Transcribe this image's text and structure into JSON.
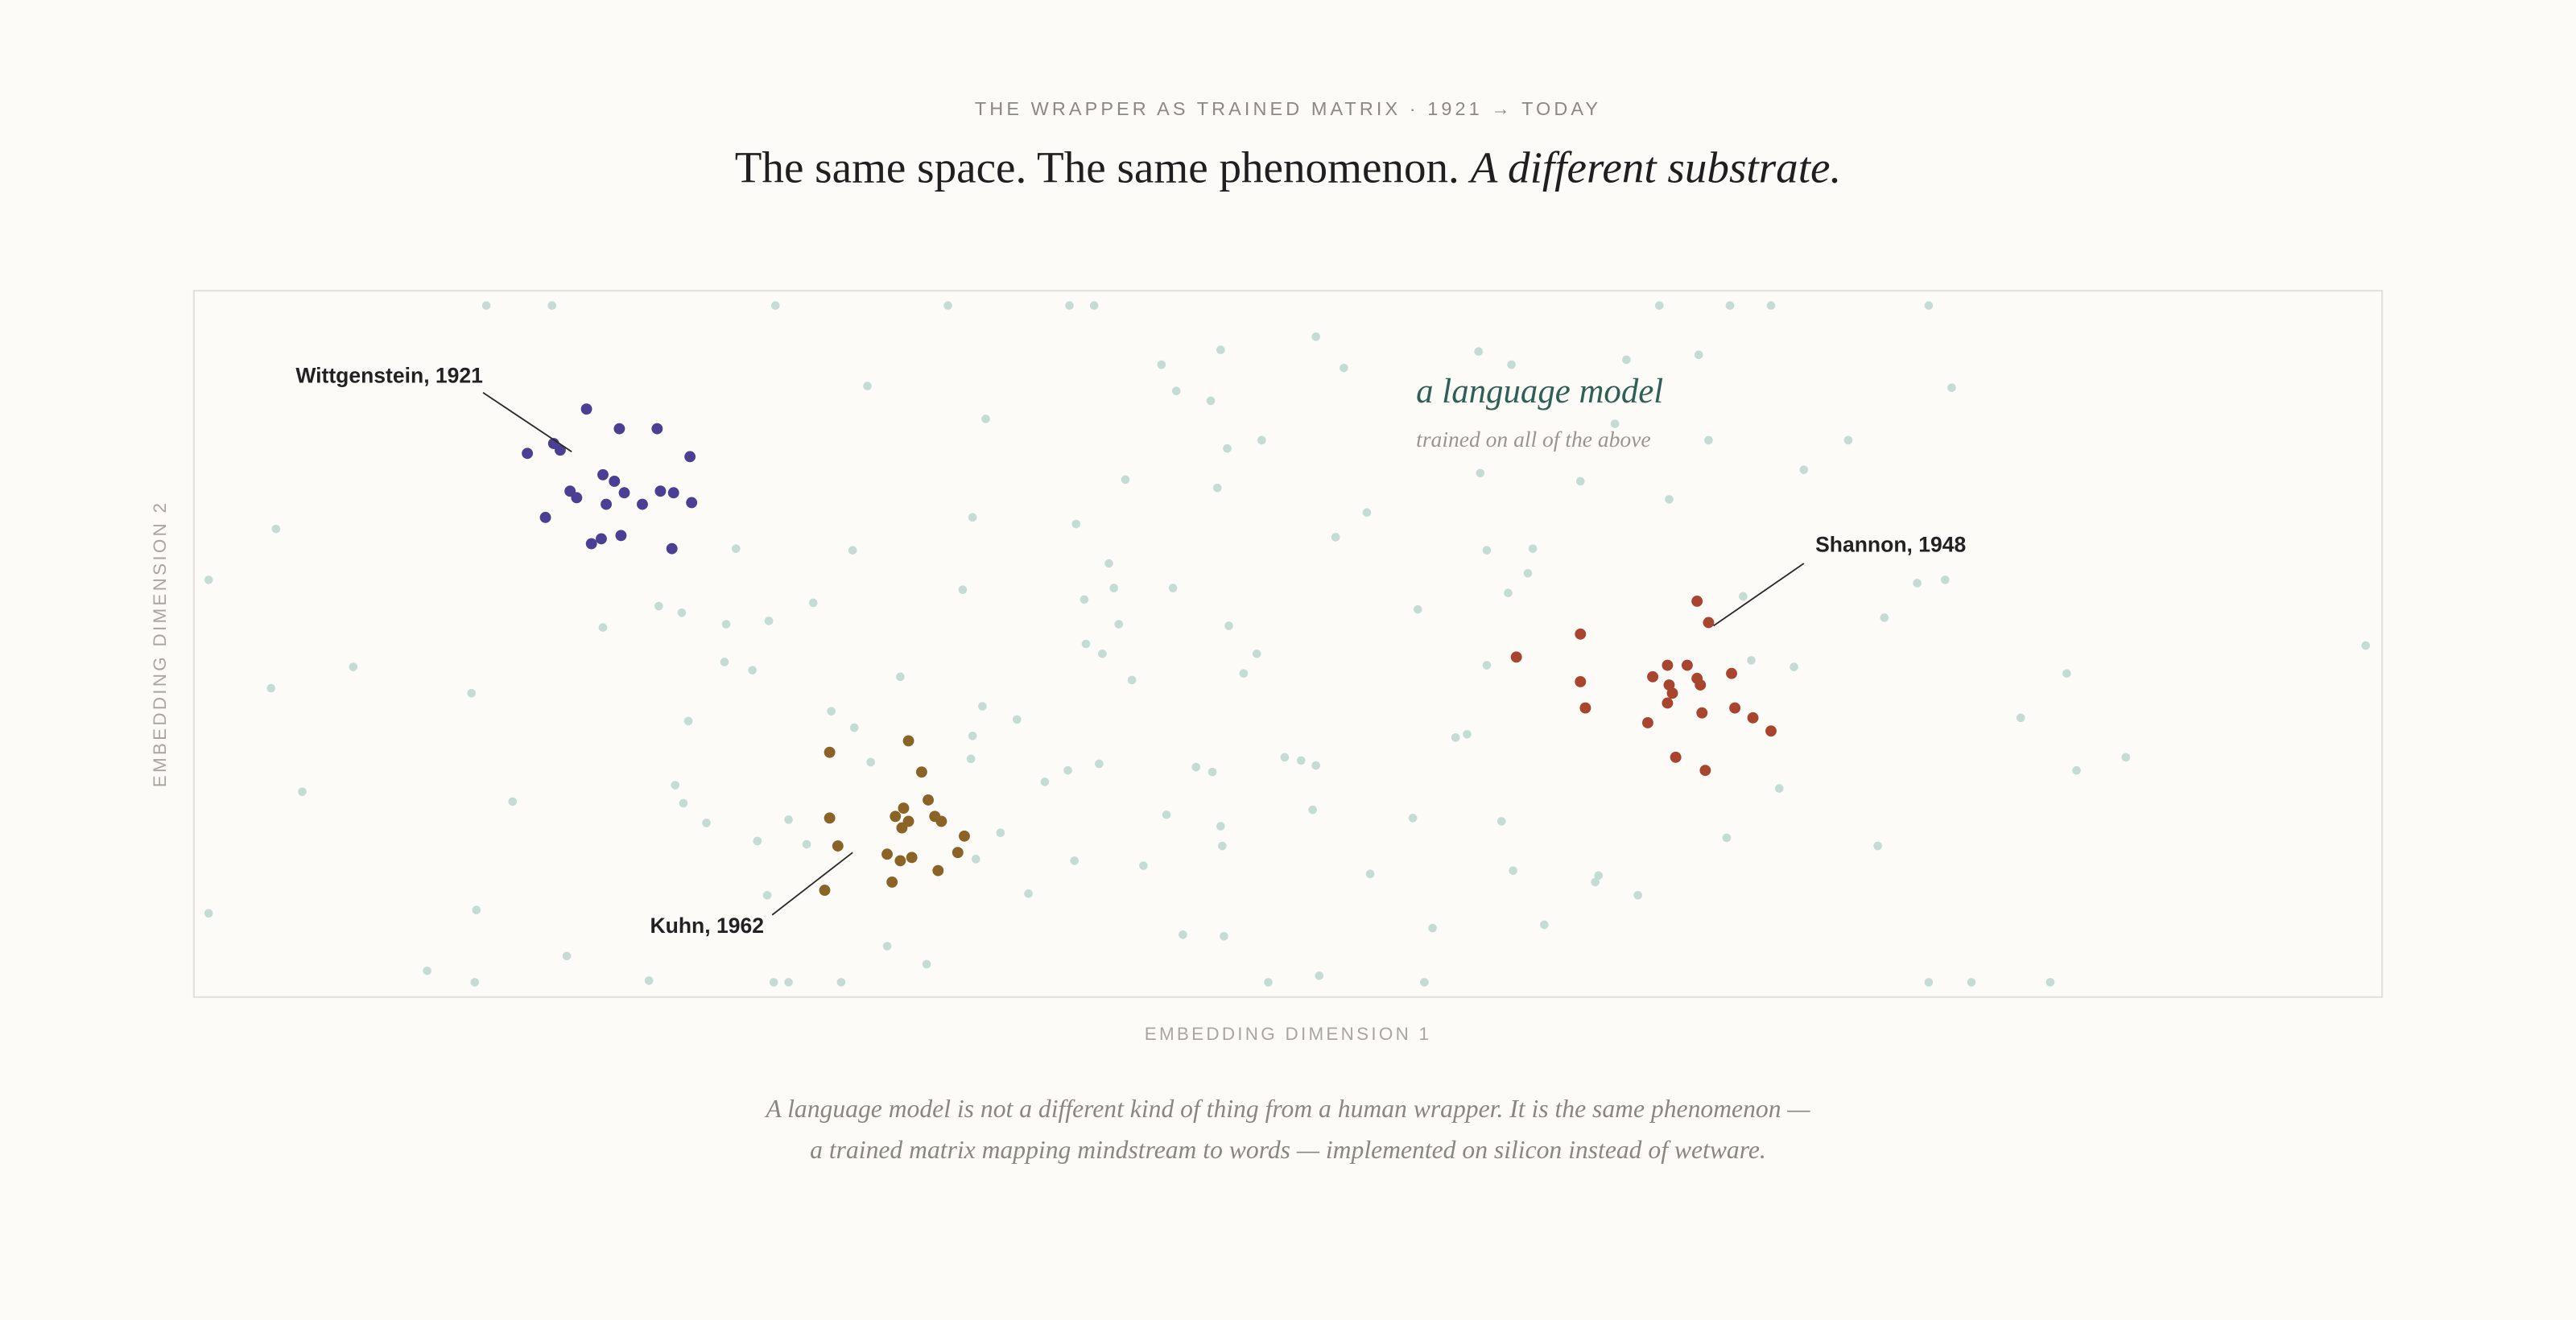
{
  "eyebrow": "THE WRAPPER AS TRAINED MATRIX · 1921 → TODAY",
  "title": "The same space. The same phenomenon. ",
  "title_italic": "A different substrate.",
  "chart_data": {
    "type": "scatter",
    "x_label": "EMBEDDING DIMENSION 1",
    "y_label": "EMBEDDING DIMENSION 2",
    "annotation": "trained on all of the above",
    "xlim": [
      0,
      1332
    ],
    "ylim": [
      0,
      430
    ],
    "series": [
      {
        "name": "a language model",
        "color": "#c3ddd5",
        "x": [
          178,
          218,
          354,
          459,
          533,
          548,
          892,
          935,
          960,
          1056,
          625,
          589,
          683,
          700,
          782,
          802,
          872,
          916,
          410,
          598,
          619,
          1070,
          482,
          865,
          650,
          629,
          922,
          1007,
          567,
          623,
          783,
          844,
          980,
          474,
          537,
          714,
          695,
          898,
          50,
          330,
          401,
          9,
          557,
          596,
          560,
          468,
          787,
          815,
          1049,
          1066,
          812,
          800,
          943,
          283,
          297,
          249,
          324,
          350,
          377,
          542,
          563,
          630,
          745,
          1029,
          1322,
          323,
          340,
          543,
          553,
          647,
          639,
          787,
          948,
          974,
          97,
          47,
          169,
          430,
          571,
          301,
          388,
          402,
          480,
          501,
          1112,
          1140,
          474,
          768,
          775,
          412,
          473,
          532,
          551,
          610,
          620,
          664,
          674,
          683,
          1146,
          1176,
          66,
          293,
          298,
          194,
          518,
          592,
          681,
          742,
          796,
          965,
          312,
          362,
          343,
          373,
          476,
          491,
          625,
          626,
          933,
          1025,
          536,
          578,
          716,
          803,
          855,
          853,
          508,
          349,
          879,
          9,
          172,
          422,
          602,
          627,
          754,
          822,
          446,
          227,
          142,
          685,
          171,
          277,
          353,
          362,
          394,
          654,
          749,
          1056,
          1082,
          1130
        ],
        "values": [
          421,
          421,
          421,
          421,
          421,
          421,
          421,
          421,
          421,
          421,
          394,
          385,
          402,
          383,
          393,
          385,
          388,
          391,
          372,
          369,
          363,
          371,
          352,
          349,
          339,
          334,
          339,
          339,
          315,
          310,
          319,
          314,
          321,
          292,
          288,
          295,
          280,
          303,
          285,
          273,
          272,
          254,
          264,
          249,
          249,
          248,
          272,
          273,
          252,
          254,
          258,
          246,
          244,
          238,
          234,
          225,
          227,
          229,
          240,
          242,
          227,
          226,
          236,
          231,
          214,
          204,
          199,
          215,
          209,
          209,
          197,
          202,
          205,
          201,
          201,
          188,
          185,
          195,
          193,
          168,
          174,
          164,
          177,
          169,
          170,
          197,
          159,
          158,
          160,
          143,
          145,
          138,
          142,
          140,
          137,
          146,
          144,
          141,
          138,
          146,
          125,
          129,
          118,
          119,
          131,
          111,
          114,
          109,
          107,
          127,
          106,
          108,
          95,
          93,
          84,
          100,
          104,
          92,
          97,
          92,
          83,
          80,
          75,
          77,
          74,
          70,
          63,
          62,
          62,
          51,
          53,
          31,
          38,
          37,
          42,
          44,
          20,
          25,
          16,
          13,
          9,
          10,
          9,
          9,
          9,
          9,
          9,
          9,
          9,
          9
        ]
      },
      {
        "name": "Wittgenstein, 1921",
        "color": "#4b3f94",
        "x": [
          239,
          259,
          282,
          219,
          223,
          203,
          302,
          249,
          256,
          229,
          233,
          262,
          284,
          292,
          303,
          273,
          251,
          214,
          260,
          248,
          242,
          291
        ],
        "values": [
          358,
          346,
          346,
          337,
          333,
          331,
          329,
          318,
          314,
          308,
          304,
          307,
          308,
          307,
          301,
          300,
          300,
          292,
          281,
          279,
          276,
          273
        ]
      },
      {
        "name": "Kuhn, 1962",
        "color": "#8b6326",
        "x": [
          435,
          387,
          443,
          447,
          432,
          427,
          451,
          435,
          387,
          431,
          455,
          469,
          392,
          422,
          465,
          430,
          437,
          453,
          425,
          384
        ],
        "values": [
          156,
          149,
          137,
          120,
          115,
          110,
          110,
          107,
          109,
          103,
          107,
          98,
          92,
          87,
          88,
          83,
          85,
          77,
          70,
          65
        ]
      },
      {
        "name": "Shannon, 1948",
        "color": "#a8452f",
        "x": [
          915,
          922,
          844,
          805,
          897,
          909,
          888,
          936,
          844,
          898,
          915,
          917,
          900,
          897,
          847,
          918,
          938,
          949,
          885,
          960,
          902,
          920
        ],
        "values": [
          241,
          228,
          221,
          207,
          202,
          202,
          195,
          197,
          192,
          190,
          194,
          190,
          185,
          179,
          176,
          173,
          176,
          170,
          167,
          162,
          146,
          138
        ]
      }
    ]
  },
  "caption": [
    "A language model is not a different kind of thing from a human wrapper. It is the same phenomenon —",
    "a trained matrix mapping mindstream to words — implemented on silicon instead of wetware."
  ]
}
